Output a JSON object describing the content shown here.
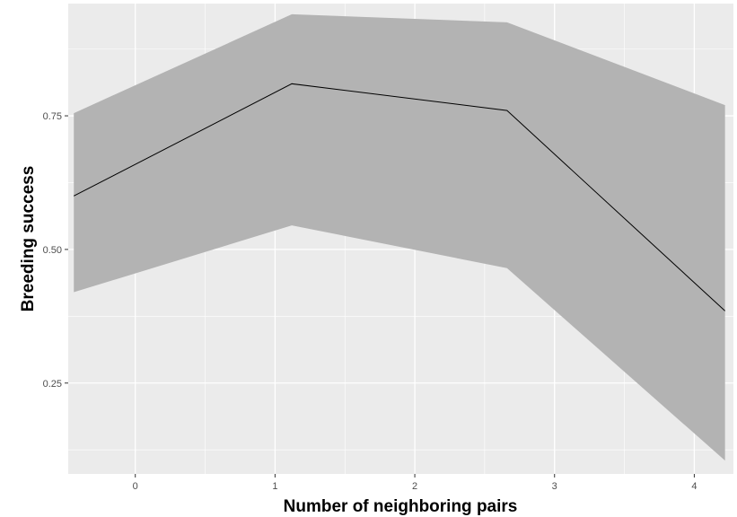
{
  "chart_data": {
    "type": "line",
    "title": "",
    "xlabel": "Number of neighboring pairs",
    "ylabel": "Breeding success",
    "xlim": [
      -0.48,
      4.28
    ],
    "ylim": [
      0.08,
      0.96
    ],
    "x_ticks": [
      {
        "value": 0,
        "label": "0"
      },
      {
        "value": 1,
        "label": "1"
      },
      {
        "value": 2,
        "label": "2"
      },
      {
        "value": 3,
        "label": "3"
      },
      {
        "value": 4,
        "label": "4"
      }
    ],
    "y_ticks": [
      {
        "value": 0.25,
        "label": "0.25"
      },
      {
        "value": 0.5,
        "label": "0.50"
      },
      {
        "value": 0.75,
        "label": "0.75"
      }
    ],
    "grid": true,
    "series": [
      {
        "x": [
          -0.44,
          1.12,
          2.66,
          4.22
        ],
        "y": [
          0.6,
          0.81,
          0.76,
          0.385
        ],
        "lower": [
          0.42,
          0.545,
          0.465,
          0.105
        ],
        "upper": [
          0.755,
          0.94,
          0.925,
          0.77
        ]
      }
    ],
    "colors": {
      "panel_background": "#ebebeb",
      "grid_line": "#ffffff",
      "ribbon": "#b3b3b3",
      "line": "#000000"
    }
  }
}
